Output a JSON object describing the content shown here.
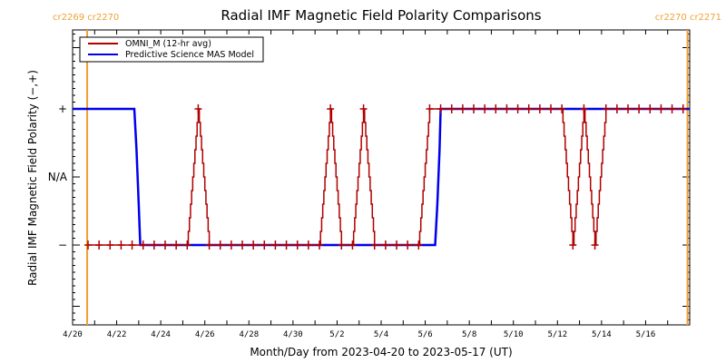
{
  "chart_data": {
    "type": "line",
    "title": "Radial IMF Magnetic Field Polarity Comparisons",
    "xlabel": "Month/Day from 2023-04-20 to 2023-05-17 (UT)",
    "ylabel": "Radial IMF Magnetic Field Polarity (−,+)",
    "x_unit": "days since 2023-04-20 00:00 UT",
    "xlim": [
      0,
      28
    ],
    "ylim": [
      -2,
      2.4
    ],
    "grid": false,
    "legend_position": "top-left",
    "x_ticks": [
      {
        "value": 0,
        "label": "4/20"
      },
      {
        "value": 2,
        "label": "4/22"
      },
      {
        "value": 4,
        "label": "4/24"
      },
      {
        "value": 6,
        "label": "4/26"
      },
      {
        "value": 8,
        "label": "4/28"
      },
      {
        "value": 10,
        "label": "4/30"
      },
      {
        "value": 12,
        "label": "5/2"
      },
      {
        "value": 14,
        "label": "5/4"
      },
      {
        "value": 16,
        "label": "5/6"
      },
      {
        "value": 18,
        "label": "5/8"
      },
      {
        "value": 20,
        "label": "5/10"
      },
      {
        "value": 22,
        "label": "5/12"
      },
      {
        "value": 24,
        "label": "5/14"
      },
      {
        "value": 26,
        "label": "5/16"
      }
    ],
    "y_ticks": [
      {
        "value": 1,
        "label": "+"
      },
      {
        "value": 0,
        "label": "N/A"
      },
      {
        "value": -1,
        "label": "−"
      }
    ],
    "carrington_markers": [
      {
        "x": 0.66,
        "label": "cr2269 cr2270",
        "side": "left"
      },
      {
        "x": 27.9,
        "label": "cr2270 cr2271",
        "side": "right"
      }
    ],
    "series": [
      {
        "name": "OMNI_M (12-hr avg)",
        "color": "#b00000",
        "marker": "+",
        "x_start": 0.7,
        "x_step": 0.5,
        "values": [
          -1,
          -1,
          -1,
          -1,
          -1,
          -1,
          -1,
          -1,
          -1,
          -1,
          1,
          -1,
          -1,
          -1,
          -1,
          -1,
          -1,
          -1,
          -1,
          -1,
          -1,
          -1,
          1,
          -1,
          -1,
          1,
          -1,
          -1,
          -1,
          -1,
          -1,
          1,
          1,
          1,
          1,
          1,
          1,
          1,
          1,
          1,
          1,
          1,
          1,
          1,
          -1,
          1,
          -1,
          1,
          1,
          1,
          1,
          1,
          1,
          1,
          1
        ]
      },
      {
        "name": "Predictive Science MAS Model",
        "color": "#0000ee",
        "x": [
          0,
          2.8,
          2.9,
          3.0,
          3.07,
          16.45,
          16.55,
          16.65,
          16.7,
          28
        ],
        "values": [
          1,
          1,
          0.4,
          -0.4,
          -1,
          -1,
          -0.4,
          0.4,
          1,
          1
        ]
      }
    ]
  },
  "legend": {
    "items": [
      {
        "label": "OMNI_M (12-hr avg)",
        "color": "#b00000"
      },
      {
        "label": "Predictive Science MAS Model",
        "color": "#0000ee"
      }
    ]
  },
  "colors": {
    "cr_marker": "#f0a030",
    "axis": "#000000"
  }
}
